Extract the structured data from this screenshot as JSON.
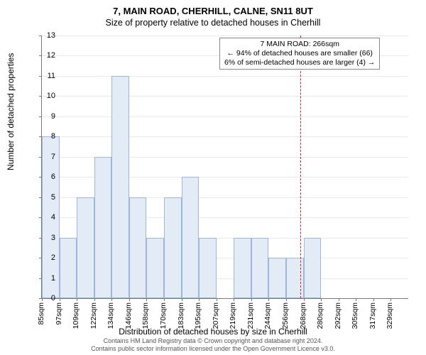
{
  "titles": {
    "line1": "7, MAIN ROAD, CHERHILL, CALNE, SN11 8UT",
    "line2": "Size of property relative to detached houses in Cherhill"
  },
  "chart": {
    "type": "histogram",
    "ylabel": "Number of detached properties",
    "xlabel": "Distribution of detached houses by size in Cherhill",
    "ylim": [
      0,
      13
    ],
    "ytick_step": 1,
    "background_color": "#ffffff",
    "grid_color": "#e9e9e9",
    "bar_fill": "#e3ebf6",
    "bar_border": "#9fb6d8",
    "axis_color": "#777777",
    "title_fontsize": 13,
    "label_fontsize": 12,
    "tick_fontsize": 11,
    "xtick_labels": [
      "85sqm",
      "97sqm",
      "109sqm",
      "122sqm",
      "134sqm",
      "146sqm",
      "158sqm",
      "170sqm",
      "183sqm",
      "195sqm",
      "207sqm",
      "219sqm",
      "231sqm",
      "244sqm",
      "256sqm",
      "268sqm",
      "280sqm",
      "292sqm",
      "305sqm",
      "317sqm",
      "329sqm"
    ],
    "bar_values": [
      8,
      3,
      5,
      7,
      11,
      5,
      3,
      5,
      6,
      3,
      0,
      3,
      3,
      2,
      2,
      3,
      0,
      0,
      0,
      0,
      0
    ],
    "marker_line": {
      "position_index": 14.8,
      "color": "#d02020"
    }
  },
  "annotation": {
    "line1": "7 MAIN ROAD: 266sqm",
    "line2": "← 94% of detached houses are smaller (66)",
    "line3": "6% of semi-detached houses are larger (4) →"
  },
  "footer": {
    "line1": "Contains HM Land Registry data © Crown copyright and database right 2024.",
    "line2": "Contains public sector information licensed under the Open Government Licence v3.0."
  }
}
